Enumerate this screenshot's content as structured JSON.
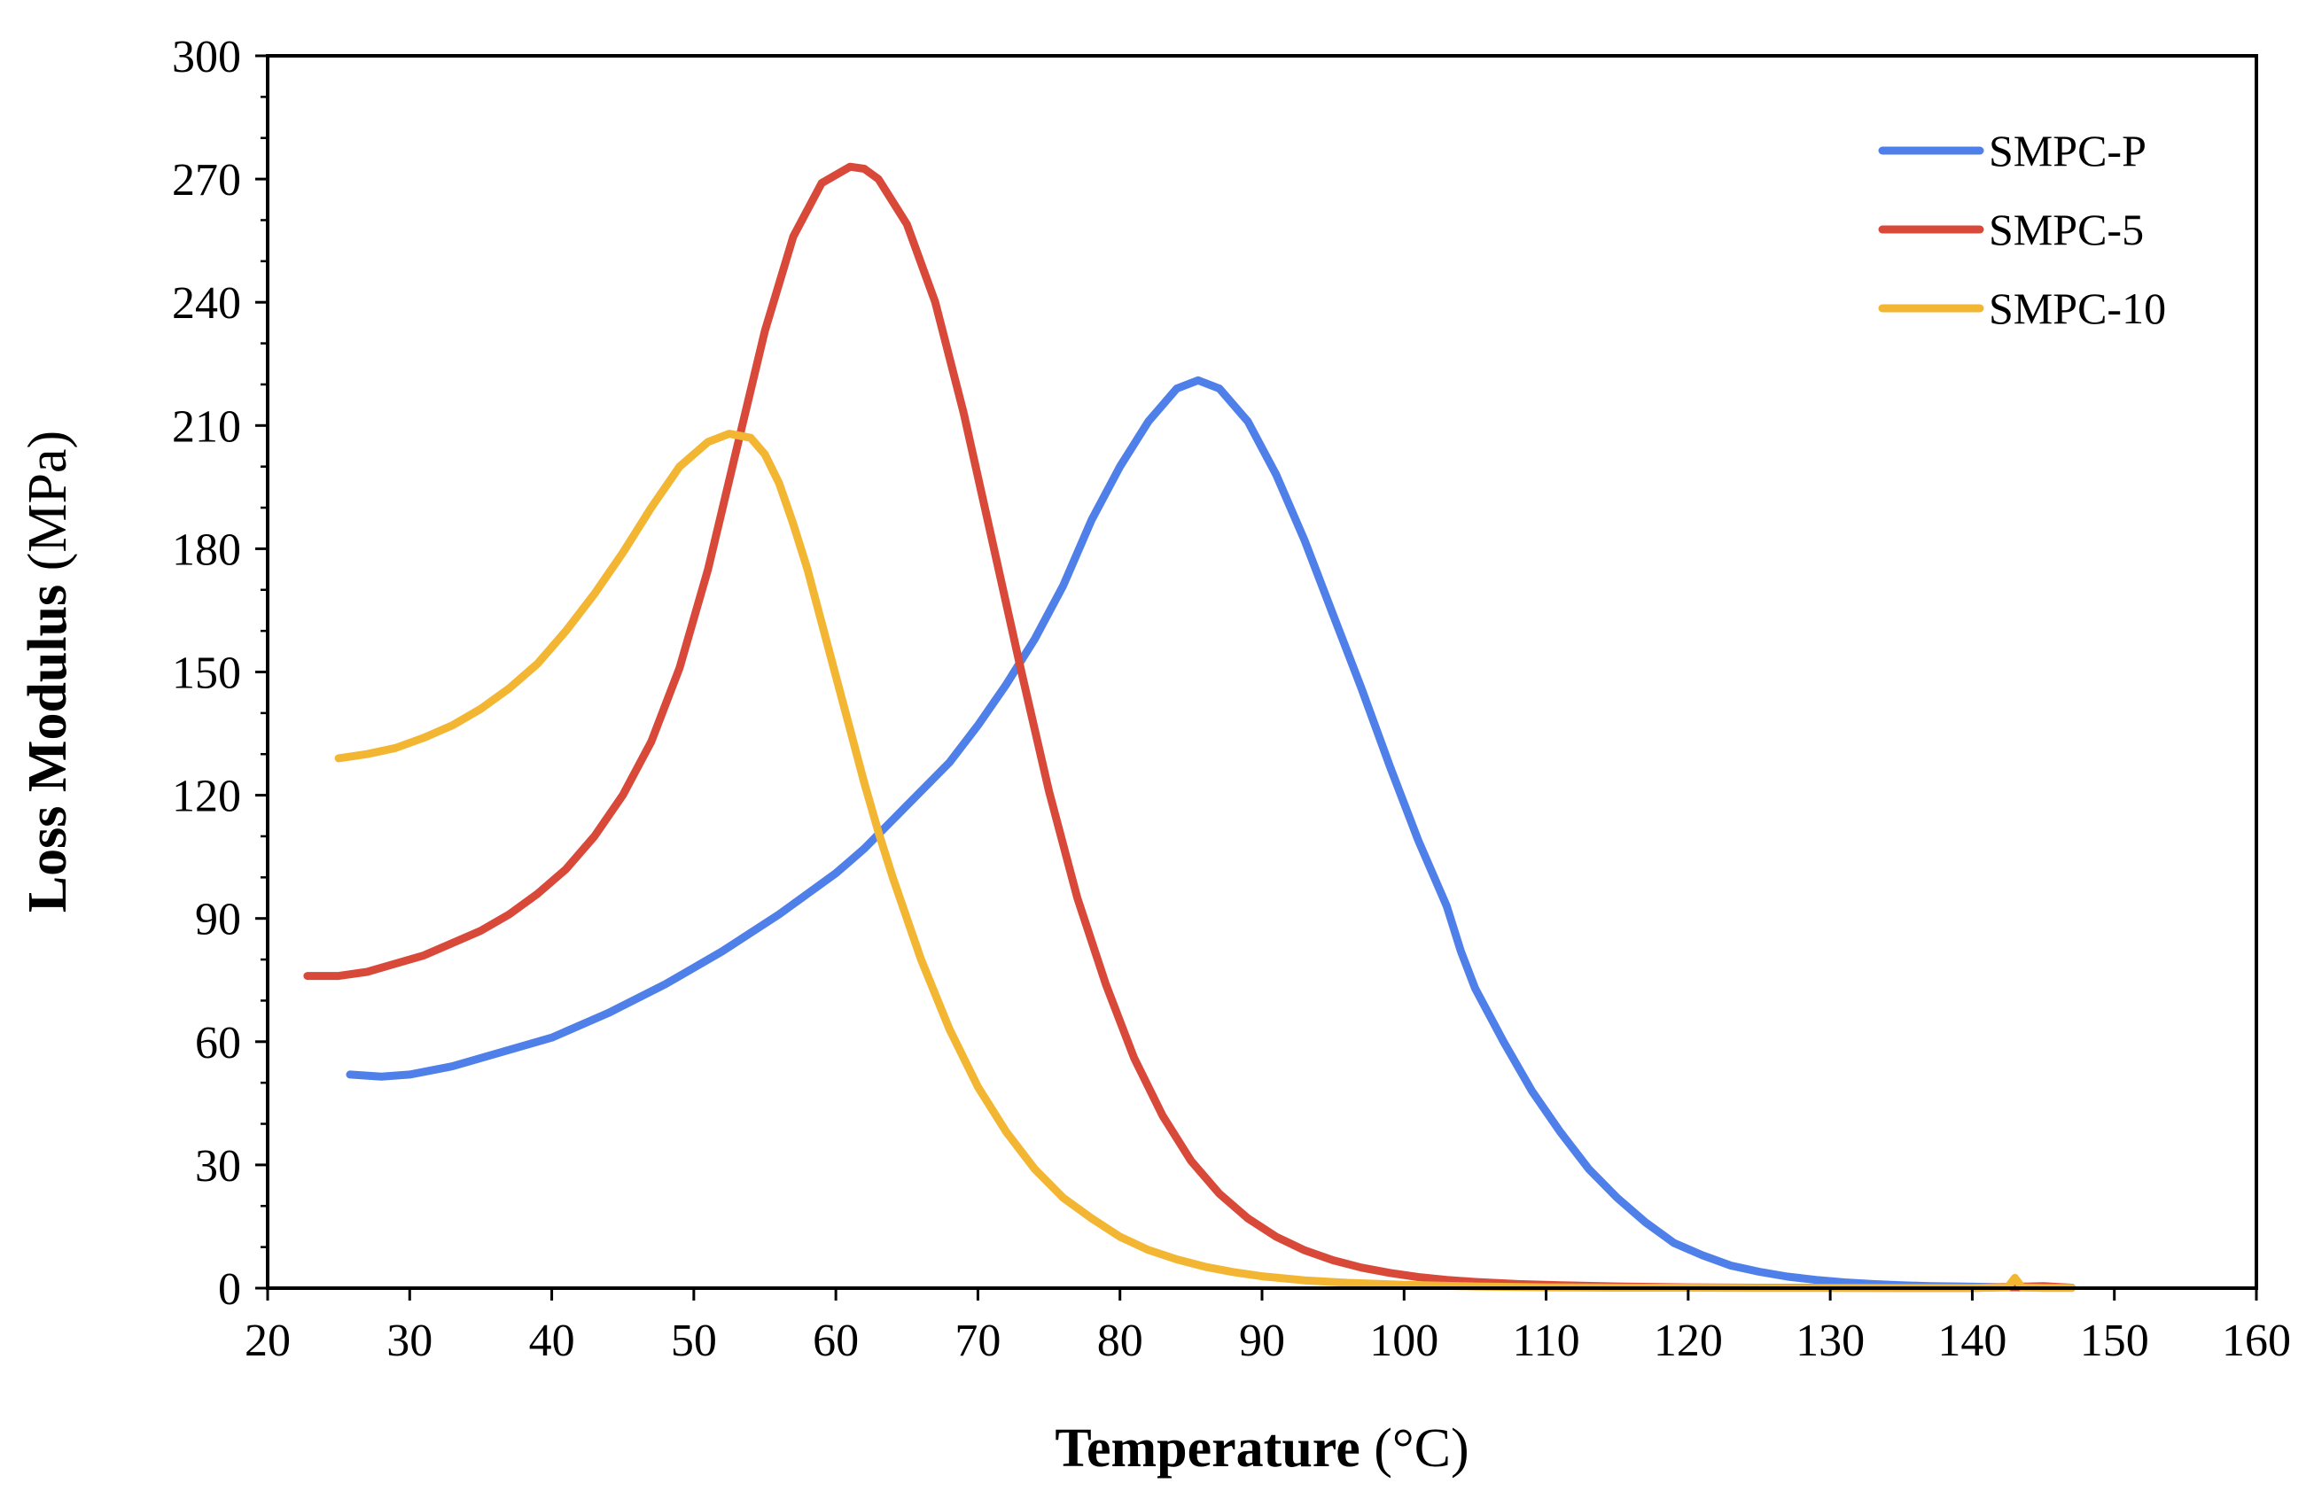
{
  "chart_data": {
    "type": "line",
    "title": "",
    "xlabel": "Temperature",
    "xlabel_unit": "(°C)",
    "ylabel": "Loss Modulus",
    "ylabel_unit": "(MPa)",
    "xlim": [
      20,
      160
    ],
    "ylim": [
      0,
      300
    ],
    "x_ticks": [
      20,
      30,
      40,
      50,
      60,
      70,
      80,
      90,
      100,
      110,
      120,
      130,
      140,
      150,
      160
    ],
    "y_ticks": [
      0,
      30,
      60,
      90,
      120,
      150,
      180,
      210,
      240,
      270,
      300
    ],
    "grid": false,
    "legend_position": "top-right",
    "series": [
      {
        "name": "SMPC-P",
        "color": "#4f7fe8",
        "x": [
          25.8,
          28,
          30,
          33,
          36,
          40,
          44,
          48,
          52,
          56,
          58,
          60,
          61,
          62,
          64,
          66,
          68,
          70,
          72,
          74,
          76,
          78,
          80,
          82,
          84,
          85.5,
          87,
          89,
          91,
          93,
          95,
          97,
          99,
          101,
          103,
          104,
          105,
          107,
          109,
          111,
          113,
          115,
          117,
          119,
          121,
          123,
          125,
          127,
          129,
          131,
          133,
          135,
          137,
          139,
          141,
          143,
          145,
          147
        ],
        "y": [
          52,
          51.5,
          52,
          54,
          57,
          61,
          67,
          74,
          82,
          91,
          96,
          101,
          104,
          107,
          114,
          121,
          128,
          137,
          147,
          158,
          171,
          187,
          200,
          211,
          219,
          221,
          219,
          211,
          198,
          182,
          164,
          146,
          127,
          109,
          93,
          82,
          73,
          60,
          48,
          38,
          29,
          22,
          16,
          11,
          8,
          5.5,
          4,
          2.8,
          2,
          1.4,
          1,
          0.7,
          0.5,
          0.4,
          0.3,
          0.2,
          0.2,
          0.1
        ]
      },
      {
        "name": "SMPC-5",
        "color": "#d9493a",
        "x": [
          22.8,
          25,
          27,
          29,
          31,
          33,
          35,
          37,
          39,
          41,
          43,
          45,
          47,
          49,
          51,
          53,
          55,
          57,
          59,
          61,
          62,
          63,
          65,
          67,
          69,
          71,
          73,
          75,
          77,
          79,
          81,
          83,
          85,
          87,
          89,
          91,
          93,
          95,
          97,
          99,
          101,
          103,
          105,
          108,
          111,
          115,
          120,
          125,
          130,
          135,
          140,
          145,
          147
        ],
        "y": [
          76,
          76,
          77,
          79,
          81,
          84,
          87,
          91,
          96,
          102,
          110,
          120,
          133,
          151,
          175,
          204,
          233,
          256,
          269,
          273,
          272.5,
          270,
          259,
          240,
          213,
          182,
          151,
          121,
          95,
          74,
          56,
          42,
          31,
          23,
          17,
          12.5,
          9.2,
          6.8,
          5,
          3.7,
          2.7,
          2,
          1.5,
          1,
          0.7,
          0.4,
          0.2,
          0.1,
          0.1,
          0.05,
          0.05,
          0.5,
          0.1
        ]
      },
      {
        "name": "SMPC-10",
        "color": "#f2b632",
        "x": [
          25,
          27,
          29,
          31,
          33,
          35,
          37,
          39,
          41,
          43,
          45,
          47,
          49,
          51,
          52.5,
          54,
          55,
          56,
          57,
          58,
          59,
          60,
          61,
          62,
          63,
          64,
          66,
          68,
          70,
          72,
          74,
          76,
          78,
          80,
          82,
          84,
          86,
          88,
          90,
          93,
          96,
          100,
          105,
          110,
          115,
          120,
          125,
          130,
          135,
          140,
          142.5,
          143,
          143.5,
          145,
          147
        ],
        "y": [
          129,
          130,
          131.5,
          134,
          137,
          141,
          146,
          152,
          160,
          169,
          179,
          190,
          200,
          206,
          208,
          207,
          203,
          196,
          186,
          175,
          162,
          149,
          136,
          123,
          111,
          100,
          80,
          63,
          49,
          38,
          29,
          22,
          17,
          12.5,
          9.3,
          7,
          5.2,
          3.9,
          2.9,
          1.9,
          1.3,
          0.8,
          0.4,
          0.2,
          0.1,
          0.1,
          0.05,
          0.05,
          0.05,
          0.05,
          0.2,
          2.5,
          0.2,
          0.05,
          0.05
        ]
      }
    ]
  }
}
